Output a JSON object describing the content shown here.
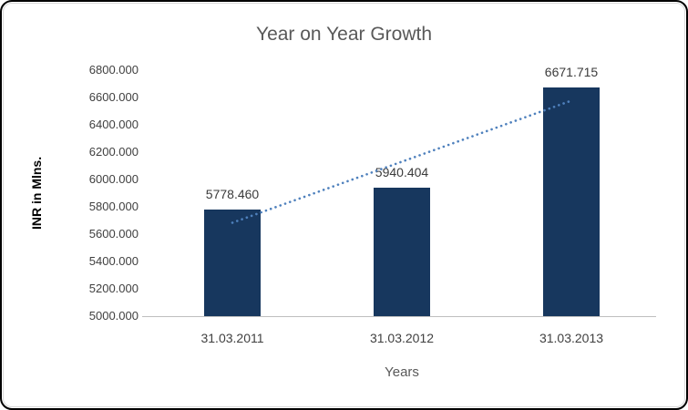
{
  "chart_data": {
    "type": "bar",
    "title": "Year on Year Growth",
    "xlabel": "Years",
    "ylabel": "INR in Mlns.",
    "categories": [
      "31.03.2011",
      "31.03.2012",
      "31.03.2013"
    ],
    "values": [
      5778.46,
      5940.404,
      6671.715
    ],
    "data_labels": [
      "5778.460",
      "5940.404",
      "6671.715"
    ],
    "ylim": [
      5000,
      6800
    ],
    "ytick_step": 200,
    "ytick_labels": [
      "5000.000",
      "5200.000",
      "5400.000",
      "5600.000",
      "5800.000",
      "6000.000",
      "6200.000",
      "6400.000",
      "6600.000",
      "6800.000"
    ],
    "grid": false,
    "legend": "none",
    "bar_color": "#17375E",
    "trendline": {
      "style": "dotted",
      "color": "#4f81bd"
    }
  }
}
